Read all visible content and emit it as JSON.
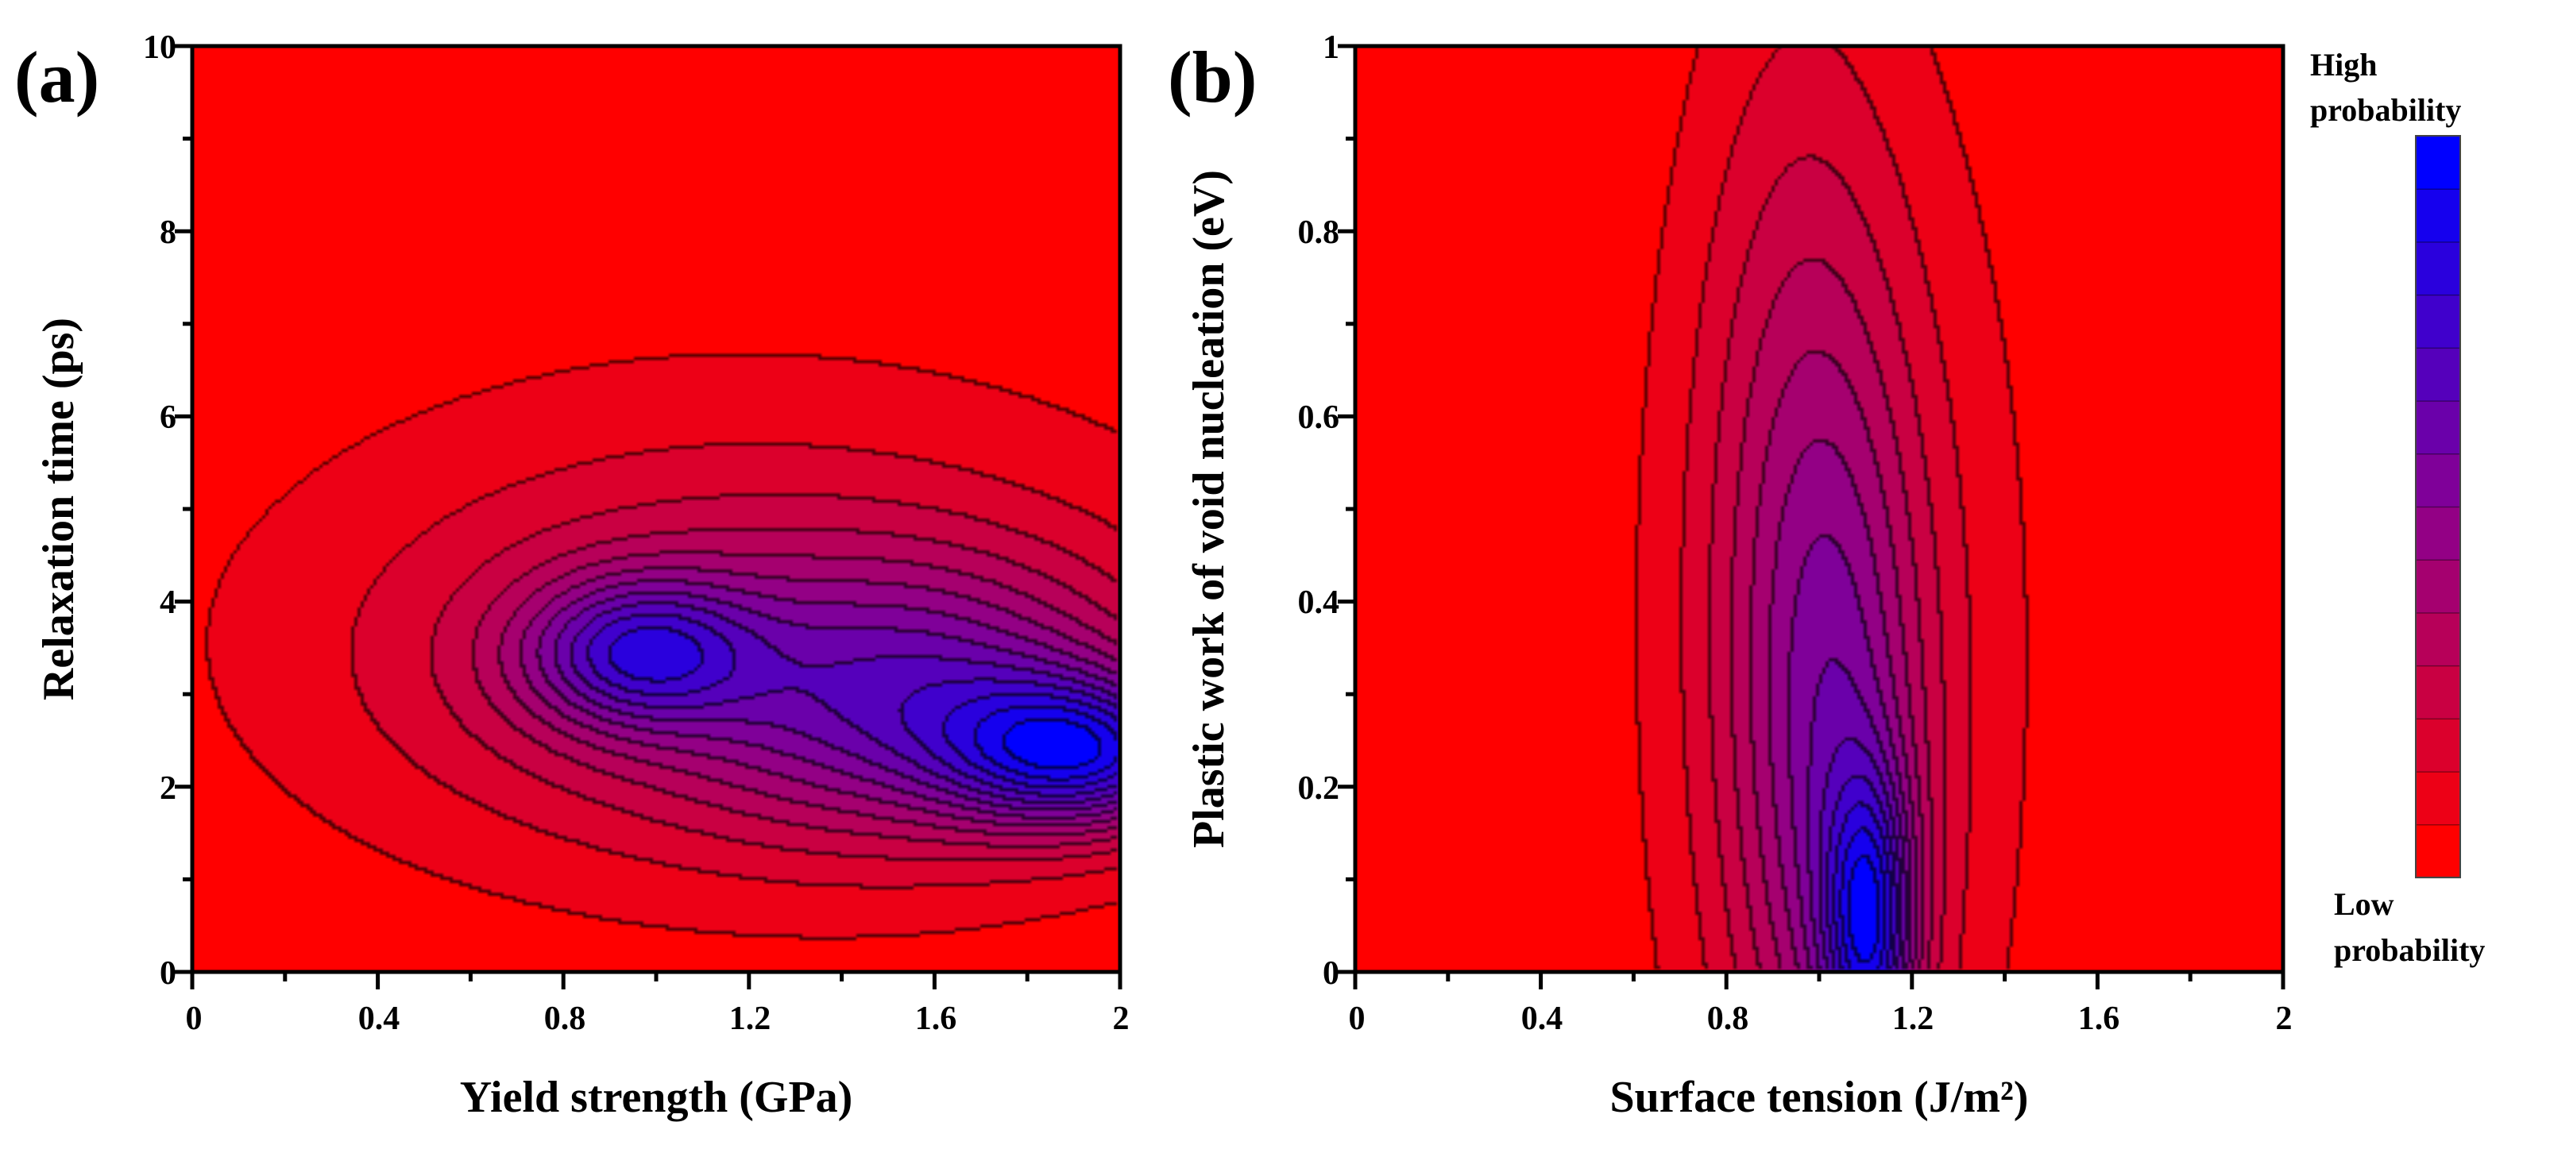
{
  "chart_data": [
    {
      "type": "heatmap",
      "panel_label": "(a)",
      "xlabel": "Yield strength (GPa)",
      "ylabel": "Relaxation time (ps)",
      "xlim": [
        0,
        2
      ],
      "ylim": [
        0,
        10
      ],
      "x_ticks": [
        "0",
        "0.4",
        "0.8",
        "1.2",
        "1.6",
        "2"
      ],
      "y_ticks": [
        "0",
        "2",
        "4",
        "6",
        "8",
        "10"
      ],
      "x_minor_step": 0.2,
      "contour_levels": 14,
      "peaks": [
        {
          "x": 1.92,
          "y": 2.35,
          "amplitude": 1.0,
          "sx": 0.2,
          "sy": 0.55,
          "note": "global maximum"
        },
        {
          "x": 1.6,
          "y": 2.9,
          "amplitude": 0.62,
          "sx": 0.34,
          "sy": 1.0
        },
        {
          "x": 0.96,
          "y": 3.45,
          "amplitude": 0.72,
          "sx": 0.17,
          "sy": 0.55,
          "note": "local maximum"
        },
        {
          "x": 1.15,
          "y": 3.3,
          "amplitude": 0.35,
          "sx": 0.5,
          "sy": 1.3
        },
        {
          "x": 1.2,
          "y": 3.8,
          "amplitude": 0.22,
          "sx": 0.85,
          "sy": 2.3
        }
      ]
    },
    {
      "type": "heatmap",
      "panel_label": "(b)",
      "xlabel": "Surface tension (J/m²)",
      "ylabel": "Plastic work of void nucleation (eV)",
      "xlim": [
        0,
        2
      ],
      "ylim": [
        0,
        1
      ],
      "x_ticks": [
        "0",
        "0.4",
        "0.8",
        "1.2",
        "1.6",
        "2"
      ],
      "y_ticks": [
        "0",
        "0.2",
        "0.4",
        "0.6",
        "0.8",
        "1"
      ],
      "x_minor_step": 0.2,
      "contour_levels": 14,
      "peaks": [
        {
          "x": 1.11,
          "y": 0.05,
          "amplitude": 1.0,
          "sx": 0.065,
          "sy": 0.11,
          "note": "global maximum"
        },
        {
          "x": 1.06,
          "y": 0.18,
          "amplitude": 0.5,
          "sx": 0.13,
          "sy": 0.3
        },
        {
          "x": 0.95,
          "y": 0.45,
          "amplitude": 0.35,
          "sx": 0.15,
          "sy": 0.4
        },
        {
          "x": 1.05,
          "y": 0.35,
          "amplitude": 0.3,
          "sx": 0.3,
          "sy": 0.5
        }
      ]
    }
  ],
  "colorbar": {
    "high_label_line1": "High",
    "high_label_line2": "probability",
    "low_label_line1": "Low",
    "low_label_line2": "probability",
    "low_color": "#ff0000",
    "mid_color": "#8a0090",
    "high_color": "#0000ff",
    "levels": 14
  }
}
